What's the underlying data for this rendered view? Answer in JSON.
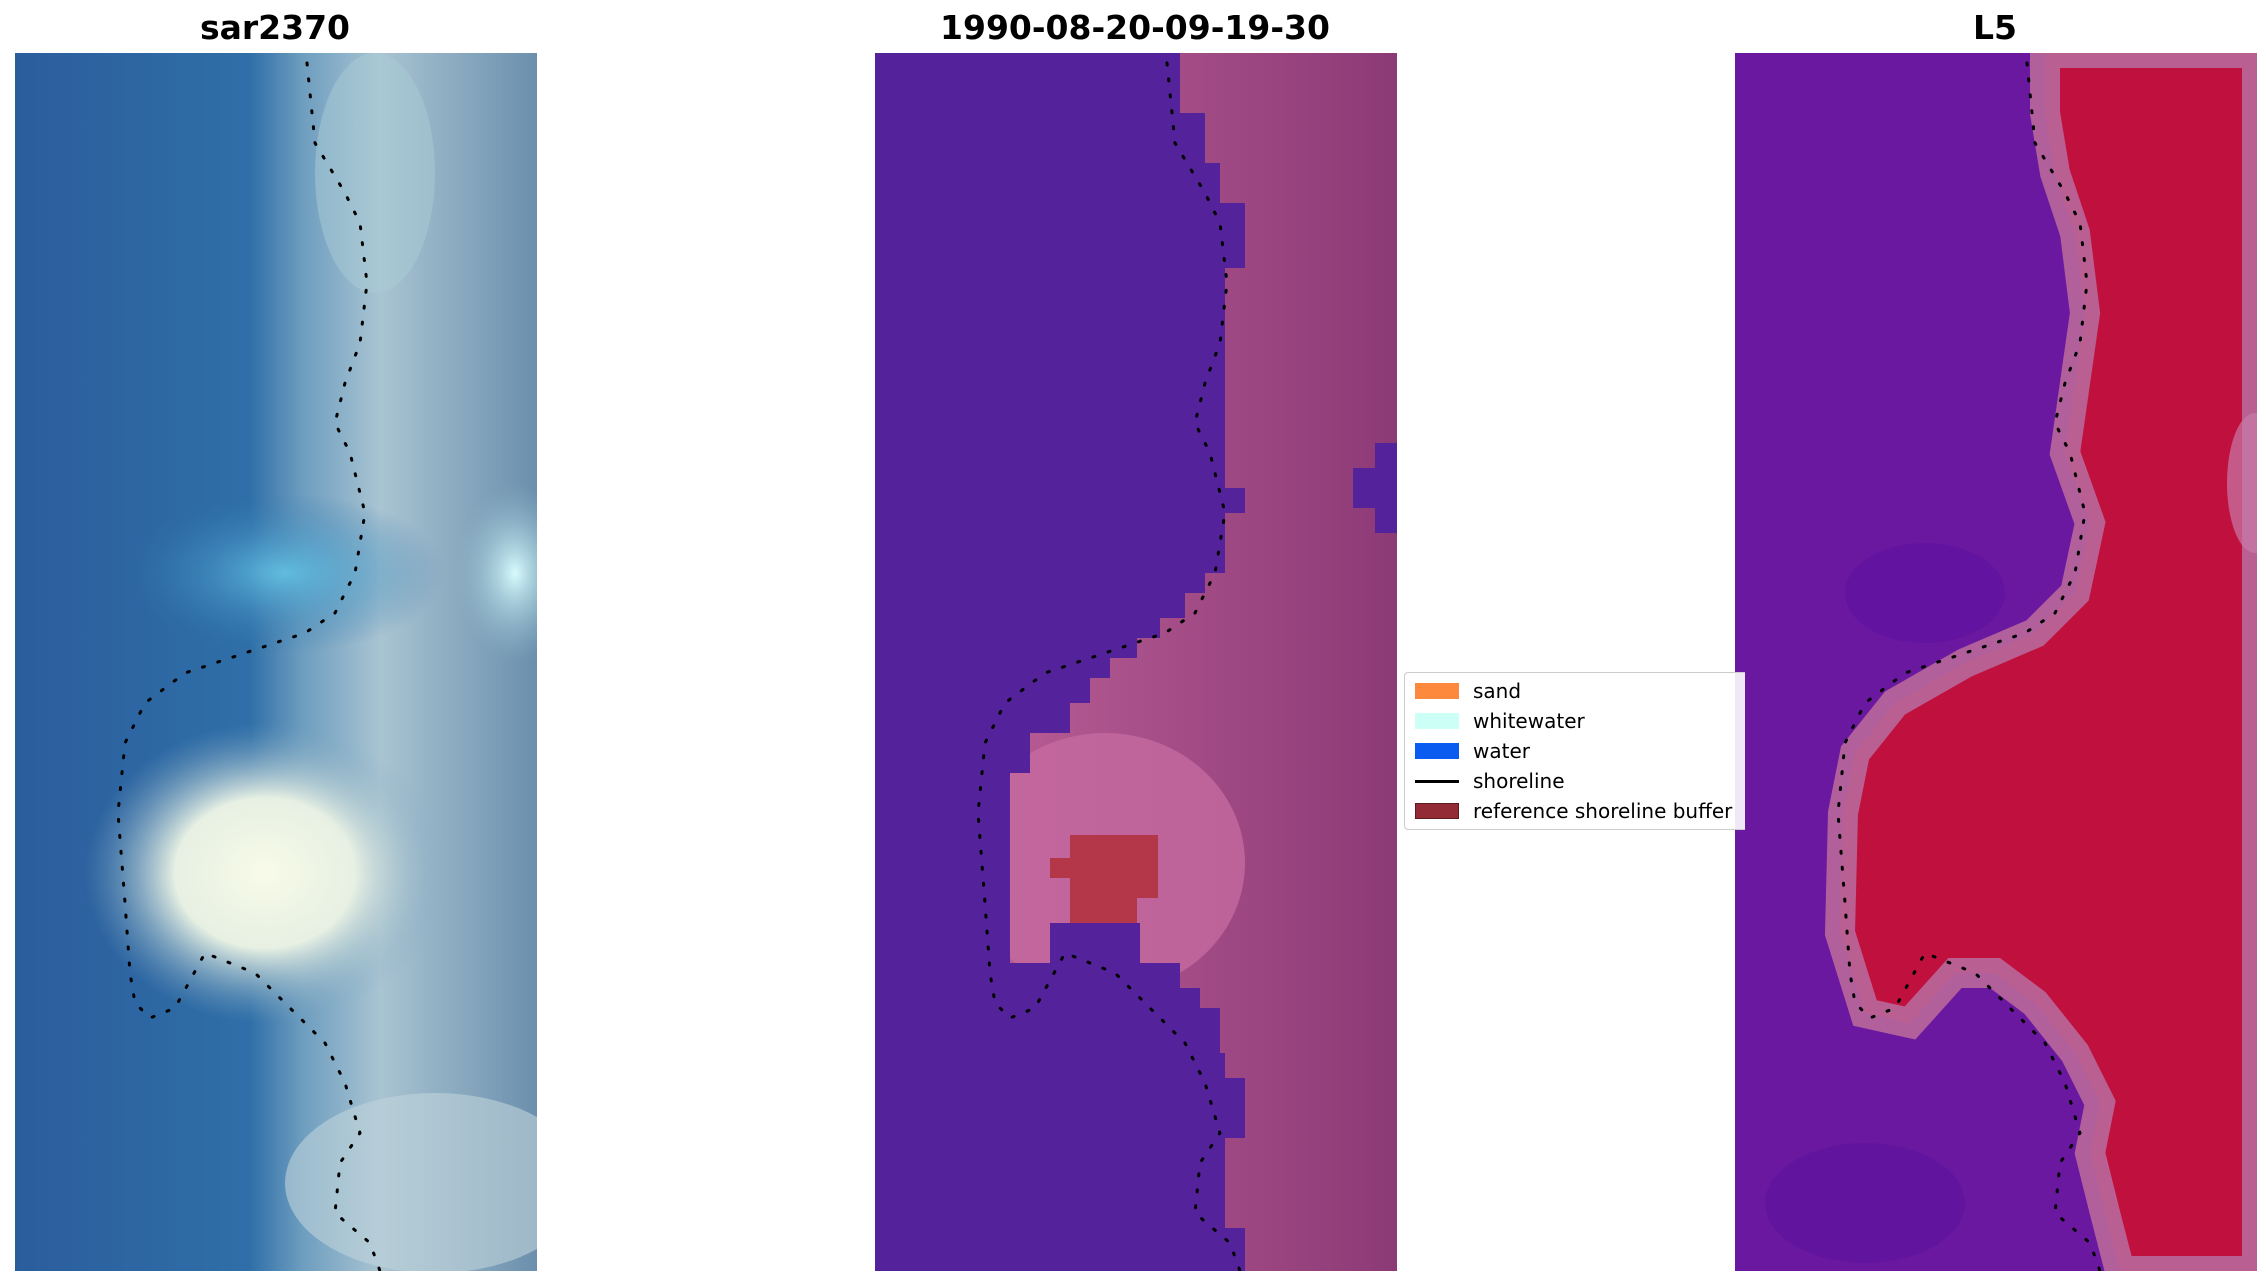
{
  "panels": [
    {
      "id": "sar",
      "title": "sar2370"
    },
    {
      "id": "date",
      "title": "1990-08-20-09-19-30"
    },
    {
      "id": "l5",
      "title": "L5"
    }
  ],
  "legend": {
    "items": [
      {
        "label": "sand",
        "kind": "patch",
        "color": "#fd8a3c"
      },
      {
        "label": "whitewater",
        "kind": "patch",
        "color": "#ccfff5"
      },
      {
        "label": "water",
        "kind": "patch",
        "color": "#0a5cf0"
      },
      {
        "label": "shoreline",
        "kind": "line",
        "color": "#000000"
      },
      {
        "label": "reference shoreline buffer",
        "kind": "patch",
        "color": "#922b36",
        "edge": "#5e1a20"
      }
    ]
  },
  "colors": {
    "water_class": "#54229a",
    "buffer_overlay": "#b33748",
    "shoreline": "#000000"
  }
}
